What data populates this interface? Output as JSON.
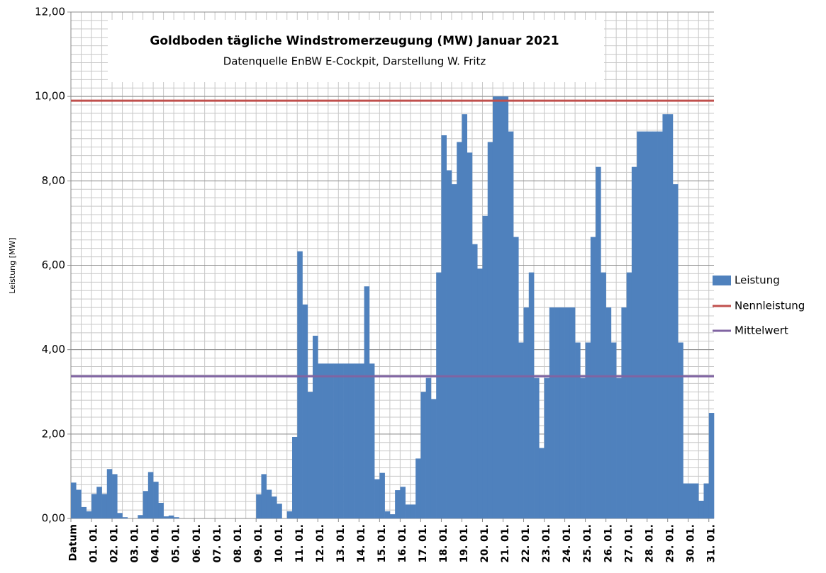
{
  "chart_data": {
    "type": "bar",
    "title": "Goldboden tägliche Windstromerzeugung (MW) Januar 2021",
    "subtitle": "Datenquelle EnBW E-Cockpit, Darstellung  W. Fritz",
    "y_label": "Leistung [MW]",
    "categories": [
      "Datum",
      null,
      null,
      null,
      "01. 01.",
      null,
      null,
      null,
      "02. 01.",
      null,
      null,
      null,
      "03. 01.",
      null,
      null,
      null,
      "04. 01.",
      null,
      null,
      null,
      "05. 01.",
      null,
      null,
      null,
      "06. 01.",
      null,
      null,
      null,
      "07. 01.",
      null,
      null,
      null,
      "08. 01.",
      null,
      null,
      null,
      "09. 01.",
      null,
      null,
      null,
      "10. 01.",
      null,
      null,
      null,
      "11. 01.",
      null,
      null,
      null,
      "12. 01.",
      null,
      null,
      null,
      "13. 01.",
      null,
      null,
      null,
      "14. 01.",
      null,
      null,
      null,
      "15. 01.",
      null,
      null,
      null,
      "16. 01.",
      null,
      null,
      null,
      "17. 01.",
      null,
      null,
      null,
      "18. 01.",
      null,
      null,
      null,
      "19. 01.",
      null,
      null,
      null,
      "20. 01.",
      null,
      null,
      null,
      "21. 01.",
      null,
      null,
      null,
      "22. 01.",
      null,
      null,
      null,
      "23. 01.",
      null,
      null,
      null,
      "24. 01.",
      null,
      null,
      null,
      "25. 01.",
      null,
      null,
      null,
      "26. 01.",
      null,
      null,
      null,
      "27. 01.",
      null,
      null,
      null,
      "28. 01.",
      null,
      null,
      null,
      "29. 01.",
      null,
      null,
      null,
      "30. 01.",
      null,
      null,
      null,
      "31. 01."
    ],
    "series": [
      {
        "name": "Leistung",
        "color": "#4f81bd",
        "values": [
          0.85,
          0.68,
          0.27,
          0.17,
          0.58,
          0.75,
          0.58,
          1.17,
          1.05,
          0.13,
          0.03,
          0,
          0,
          0.08,
          0.65,
          1.1,
          0.87,
          0.37,
          0.05,
          0.07,
          0.03,
          0,
          0,
          0,
          0,
          0,
          0,
          0,
          0,
          0,
          0,
          0,
          0,
          0,
          0,
          0,
          0.57,
          1.05,
          0.68,
          0.52,
          0.35,
          0,
          0.17,
          1.93,
          6.33,
          5.07,
          3.0,
          4.33,
          3.67,
          3.67,
          3.67,
          3.67,
          3.67,
          3.67,
          3.67,
          3.67,
          3.67,
          5.5,
          3.67,
          0.93,
          1.08,
          0.17,
          0.1,
          0.67,
          0.75,
          0.33,
          0.33,
          1.42,
          3.0,
          3.33,
          2.83,
          5.83,
          9.08,
          8.25,
          7.92,
          8.92,
          9.58,
          8.67,
          6.5,
          5.92,
          7.17,
          8.92,
          10.0,
          10.0,
          10.0,
          9.17,
          6.67,
          4.17,
          5.0,
          5.83,
          3.33,
          1.67,
          3.33,
          5.0,
          5.0,
          5.0,
          5.0,
          5.0,
          4.17,
          3.33,
          4.17,
          6.67,
          8.33,
          5.83,
          5.0,
          4.17,
          3.33,
          5.0,
          5.83,
          8.33,
          9.17,
          9.17,
          9.17,
          9.17,
          9.17,
          9.58,
          9.58,
          7.92,
          4.17,
          0.83,
          0.83,
          0.83,
          0.42,
          0.83,
          2.5
        ]
      }
    ],
    "reference_lines": [
      {
        "name": "Nennleistung",
        "color": "#c0504d",
        "value": 9.9
      },
      {
        "name": "Mittelwert",
        "color": "#8064a2",
        "value": 3.37
      }
    ],
    "ylim": [
      0,
      12
    ],
    "yticks": [
      {
        "value": 0,
        "label": "0,00"
      },
      {
        "value": 2,
        "label": "2,00"
      },
      {
        "value": 4,
        "label": "4,00"
      },
      {
        "value": 6,
        "label": "6,00"
      },
      {
        "value": 8,
        "label": "8,00"
      },
      {
        "value": 10,
        "label": "10,00"
      },
      {
        "value": 12,
        "label": "12,00"
      }
    ],
    "grid": true,
    "legend": "right"
  }
}
